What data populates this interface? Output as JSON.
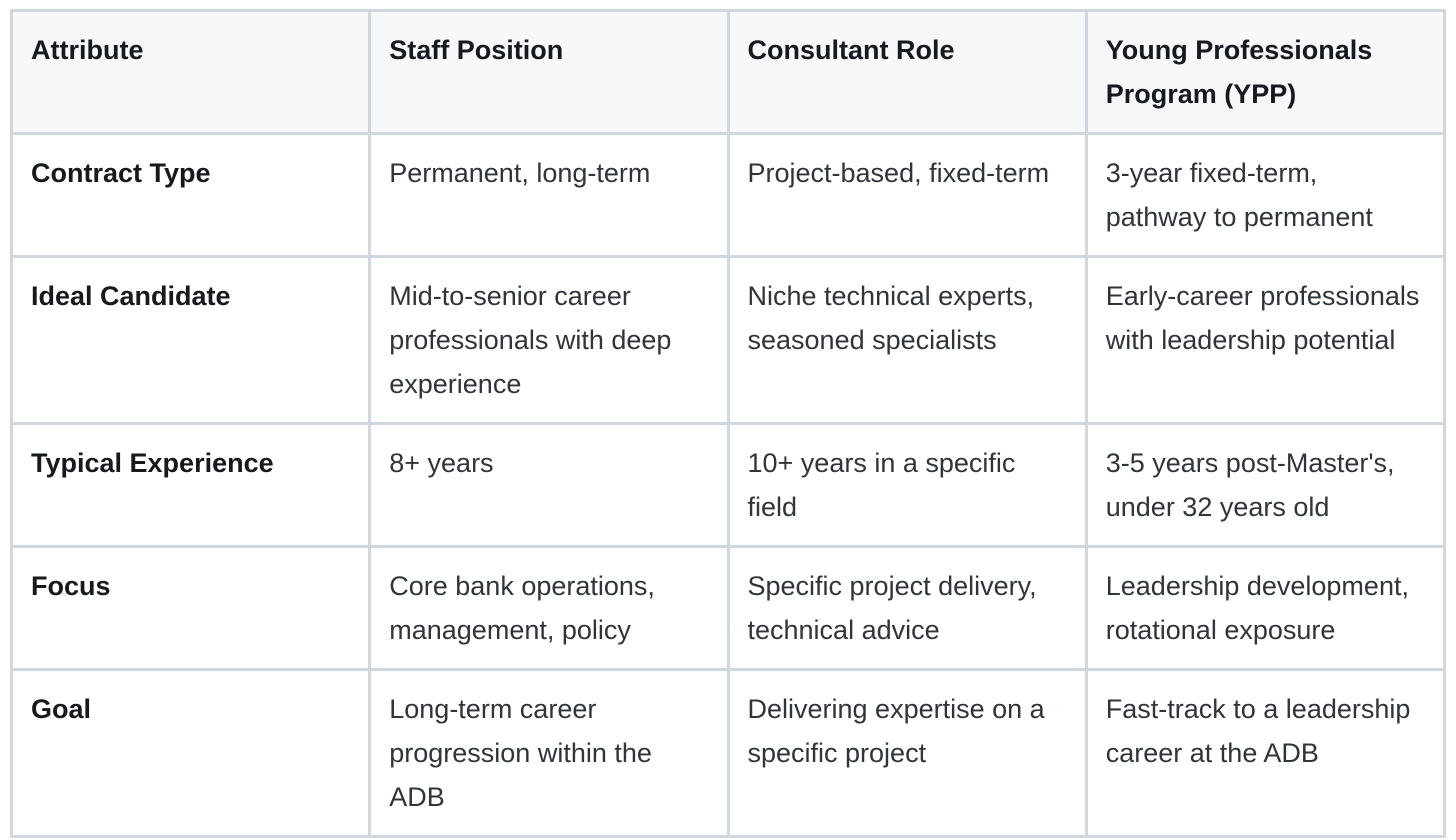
{
  "styles": {
    "border_color": "#d0d7de",
    "header_background": "#f6f8fa",
    "header_text_color": "#16191d",
    "row_label_color": "#16191d",
    "body_text_color": "#2f353b",
    "page_background": "#ffffff"
  },
  "chart_data": {
    "type": "table",
    "title": "",
    "columns": [
      "Attribute",
      "Staff Position",
      "Consultant Role",
      "Young Professionals Program (YPP)"
    ],
    "column_lines": [
      [
        "Attribute"
      ],
      [
        "Staff Position"
      ],
      [
        "Consultant Role"
      ],
      [
        "Young Professionals",
        "Program (YPP)"
      ]
    ],
    "rows": [
      {
        "cells": [
          [
            "Contract Type"
          ],
          [
            "Permanent, long-term"
          ],
          [
            "Project-based, fixed-term"
          ],
          [
            "3-year fixed-term,",
            "pathway to permanent"
          ]
        ]
      },
      {
        "cells": [
          [
            "Ideal Candidate"
          ],
          [
            "Mid-to-senior career",
            "professionals with deep",
            "experience"
          ],
          [
            "Niche technical experts,",
            "seasoned specialists"
          ],
          [
            "Early-career professionals",
            "with leadership potential"
          ]
        ]
      },
      {
        "cells": [
          [
            "Typical Experience"
          ],
          [
            "8+ years"
          ],
          [
            "10+ years in a specific",
            "field"
          ],
          [
            "3-5 years post-Master's,",
            "under 32 years old"
          ]
        ]
      },
      {
        "cells": [
          [
            "Focus"
          ],
          [
            "Core bank operations,",
            "management, policy"
          ],
          [
            "Specific project delivery,",
            "technical advice"
          ],
          [
            "Leadership development,",
            "rotational exposure"
          ]
        ]
      },
      {
        "cells": [
          [
            "Goal"
          ],
          [
            "Long-term career",
            "progression within the",
            "ADB"
          ],
          [
            "Delivering expertise on a",
            "specific project"
          ],
          [
            "Fast-track to a leadership",
            "career at the ADB"
          ]
        ]
      }
    ]
  }
}
